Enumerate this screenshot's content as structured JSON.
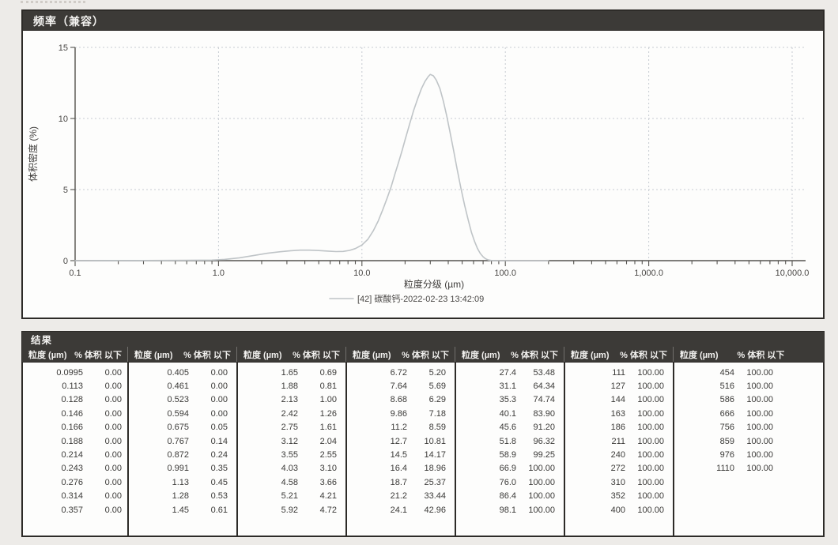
{
  "frequency_panel": {
    "title": "频率（兼容）"
  },
  "chart_data": {
    "type": "line",
    "title": "频率（兼容）",
    "xlabel": "粒度分级 (µm)",
    "ylabel": "体积密度 (%)",
    "x_scale": "log",
    "xlim": [
      0.1,
      10000
    ],
    "ylim": [
      0,
      15
    ],
    "grid": true,
    "legend_position": "bottom",
    "x_tick_labels": [
      "0.1",
      "1.0",
      "10.0",
      "100.0",
      "1,000.0",
      "10,000.0"
    ],
    "y_ticks": [
      0,
      5,
      10,
      15
    ],
    "series": [
      {
        "name": "[42] 碳酸钙-2022-02-23 13:42:09",
        "color": "#bfc4c7",
        "points": [
          [
            0.1,
            0
          ],
          [
            0.3,
            0.01
          ],
          [
            0.6,
            0.02
          ],
          [
            0.9,
            0.04
          ],
          [
            1.1,
            0.09
          ],
          [
            1.4,
            0.2
          ],
          [
            1.8,
            0.38
          ],
          [
            2.2,
            0.52
          ],
          [
            2.7,
            0.63
          ],
          [
            3.2,
            0.7
          ],
          [
            3.7,
            0.74
          ],
          [
            4.3,
            0.74
          ],
          [
            5.0,
            0.71
          ],
          [
            5.8,
            0.67
          ],
          [
            6.6,
            0.64
          ],
          [
            7.4,
            0.65
          ],
          [
            8.2,
            0.72
          ],
          [
            9.0,
            0.85
          ],
          [
            10,
            1.1
          ],
          [
            11,
            1.5
          ],
          [
            12,
            2.1
          ],
          [
            13,
            2.8
          ],
          [
            14,
            3.6
          ],
          [
            15,
            4.4
          ],
          [
            16,
            5.2
          ],
          [
            17,
            6.1
          ],
          [
            18,
            6.9
          ],
          [
            19,
            7.7
          ],
          [
            20,
            8.5
          ],
          [
            21.5,
            9.6
          ],
          [
            23,
            10.6
          ],
          [
            24.5,
            11.4
          ],
          [
            26,
            12.1
          ],
          [
            27.5,
            12.6
          ],
          [
            29,
            12.95
          ],
          [
            30,
            13.1
          ],
          [
            31.5,
            13.0
          ],
          [
            33,
            12.7
          ],
          [
            35,
            12.1
          ],
          [
            37,
            11.2
          ],
          [
            39,
            10.2
          ],
          [
            41,
            9.1
          ],
          [
            43.5,
            7.8
          ],
          [
            46,
            6.5
          ],
          [
            49,
            5.1
          ],
          [
            52,
            3.9
          ],
          [
            55,
            2.9
          ],
          [
            58,
            2.0
          ],
          [
            61,
            1.35
          ],
          [
            64,
            0.85
          ],
          [
            67,
            0.5
          ],
          [
            70,
            0.27
          ],
          [
            73,
            0.13
          ],
          [
            76,
            0.05
          ],
          [
            80,
            0.01
          ],
          [
            85,
            0
          ],
          [
            100,
            0
          ],
          [
            200,
            0
          ]
        ]
      }
    ]
  },
  "results": {
    "title": "结果",
    "col_headers": {
      "size": "粒度 (µm)",
      "pct": "% 体积 以下"
    },
    "groups": [
      [
        [
          "0.0995",
          "0.00"
        ],
        [
          "0.113",
          "0.00"
        ],
        [
          "0.128",
          "0.00"
        ],
        [
          "0.146",
          "0.00"
        ],
        [
          "0.166",
          "0.00"
        ],
        [
          "0.188",
          "0.00"
        ],
        [
          "0.214",
          "0.00"
        ],
        [
          "0.243",
          "0.00"
        ],
        [
          "0.276",
          "0.00"
        ],
        [
          "0.314",
          "0.00"
        ],
        [
          "0.357",
          "0.00"
        ]
      ],
      [
        [
          "0.405",
          "0.00"
        ],
        [
          "0.461",
          "0.00"
        ],
        [
          "0.523",
          "0.00"
        ],
        [
          "0.594",
          "0.00"
        ],
        [
          "0.675",
          "0.05"
        ],
        [
          "0.767",
          "0.14"
        ],
        [
          "0.872",
          "0.24"
        ],
        [
          "0.991",
          "0.35"
        ],
        [
          "1.13",
          "0.45"
        ],
        [
          "1.28",
          "0.53"
        ],
        [
          "1.45",
          "0.61"
        ]
      ],
      [
        [
          "1.65",
          "0.69"
        ],
        [
          "1.88",
          "0.81"
        ],
        [
          "2.13",
          "1.00"
        ],
        [
          "2.42",
          "1.26"
        ],
        [
          "2.75",
          "1.61"
        ],
        [
          "3.12",
          "2.04"
        ],
        [
          "3.55",
          "2.55"
        ],
        [
          "4.03",
          "3.10"
        ],
        [
          "4.58",
          "3.66"
        ],
        [
          "5.21",
          "4.21"
        ],
        [
          "5.92",
          "4.72"
        ]
      ],
      [
        [
          "6.72",
          "5.20"
        ],
        [
          "7.64",
          "5.69"
        ],
        [
          "8.68",
          "6.29"
        ],
        [
          "9.86",
          "7.18"
        ],
        [
          "11.2",
          "8.59"
        ],
        [
          "12.7",
          "10.81"
        ],
        [
          "14.5",
          "14.17"
        ],
        [
          "16.4",
          "18.96"
        ],
        [
          "18.7",
          "25.37"
        ],
        [
          "21.2",
          "33.44"
        ],
        [
          "24.1",
          "42.96"
        ]
      ],
      [
        [
          "27.4",
          "53.48"
        ],
        [
          "31.1",
          "64.34"
        ],
        [
          "35.3",
          "74.74"
        ],
        [
          "40.1",
          "83.90"
        ],
        [
          "45.6",
          "91.20"
        ],
        [
          "51.8",
          "96.32"
        ],
        [
          "58.9",
          "99.25"
        ],
        [
          "66.9",
          "100.00"
        ],
        [
          "76.0",
          "100.00"
        ],
        [
          "86.4",
          "100.00"
        ],
        [
          "98.1",
          "100.00"
        ]
      ],
      [
        [
          "111",
          "100.00"
        ],
        [
          "127",
          "100.00"
        ],
        [
          "144",
          "100.00"
        ],
        [
          "163",
          "100.00"
        ],
        [
          "186",
          "100.00"
        ],
        [
          "211",
          "100.00"
        ],
        [
          "240",
          "100.00"
        ],
        [
          "272",
          "100.00"
        ],
        [
          "310",
          "100.00"
        ],
        [
          "352",
          "100.00"
        ],
        [
          "400",
          "100.00"
        ]
      ],
      [
        [
          "454",
          "100.00"
        ],
        [
          "516",
          "100.00"
        ],
        [
          "586",
          "100.00"
        ],
        [
          "666",
          "100.00"
        ],
        [
          "756",
          "100.00"
        ],
        [
          "859",
          "100.00"
        ],
        [
          "976",
          "100.00"
        ],
        [
          "1110",
          "100.00"
        ]
      ]
    ]
  }
}
